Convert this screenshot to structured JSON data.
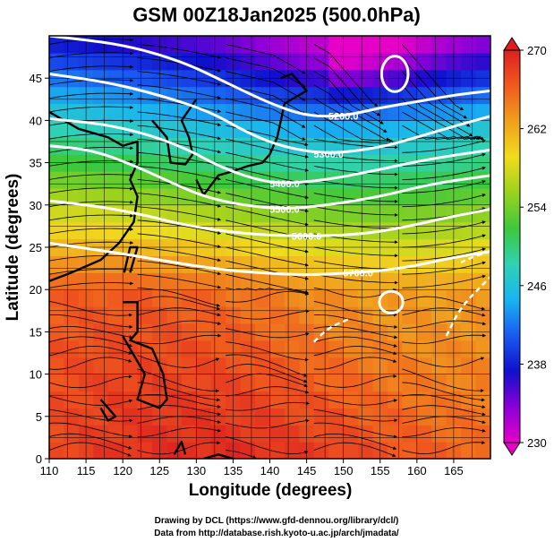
{
  "chart_data": {
    "type": "heatmap",
    "title": "GSM 00Z18Jan2025 (500.0hPa)",
    "xlabel": "Longitude (degrees)",
    "ylabel": "Latitude  (degrees)",
    "xlim": [
      110,
      170
    ],
    "ylim": [
      0,
      50
    ],
    "x_ticks": [
      110,
      115,
      120,
      125,
      130,
      135,
      140,
      145,
      150,
      155,
      160,
      165
    ],
    "y_ticks": [
      0,
      5,
      10,
      15,
      20,
      25,
      30,
      35,
      40,
      45
    ],
    "colorbar": {
      "min": 230,
      "max": 270,
      "ticks": [
        230,
        238,
        246,
        254,
        262,
        270
      ],
      "colors": [
        "#e600c8",
        "#8a00d8",
        "#1010cc",
        "#1a5af0",
        "#19b4f0",
        "#30d2b4",
        "#3cc83c",
        "#9ad21e",
        "#f0dc1e",
        "#f0a01e",
        "#f05a1e",
        "#dc2020"
      ]
    },
    "field_description": "temperature shading (K) with geopotential height contours and wind streamlines",
    "contours": [
      {
        "label": "5200.0",
        "points": [
          [
            110,
            50
          ],
          [
            120,
            49
          ],
          [
            128,
            47
          ],
          [
            134,
            44.5
          ],
          [
            140,
            42
          ],
          [
            145,
            40.5
          ],
          [
            150,
            40.5
          ],
          [
            155,
            41.5
          ],
          [
            160,
            42.2
          ],
          [
            165,
            43
          ],
          [
            170,
            43.5
          ]
        ]
      },
      {
        "label": "5300.0",
        "points": [
          [
            110,
            45.5
          ],
          [
            118,
            44.5
          ],
          [
            125,
            43
          ],
          [
            132,
            41
          ],
          [
            137,
            38.5
          ],
          [
            142,
            36.8
          ],
          [
            148,
            36
          ],
          [
            155,
            36.8
          ],
          [
            160,
            38
          ],
          [
            165,
            39.3
          ],
          [
            170,
            40.5
          ]
        ]
      },
      {
        "label": "5400.0",
        "points": [
          [
            110,
            40.2
          ],
          [
            118,
            39.5
          ],
          [
            124,
            38.2
          ],
          [
            129,
            36.5
          ],
          [
            133,
            34.6
          ],
          [
            138,
            33
          ],
          [
            142,
            32.5
          ],
          [
            148,
            33
          ],
          [
            155,
            34.2
          ],
          [
            162,
            35.5
          ],
          [
            170,
            36.5
          ]
        ]
      },
      {
        "label": "5500.0",
        "points": [
          [
            110,
            37
          ],
          [
            116,
            36.5
          ],
          [
            122,
            34.5
          ],
          [
            127,
            32.5
          ],
          [
            131,
            31
          ],
          [
            136,
            30
          ],
          [
            142,
            29.5
          ],
          [
            148,
            30
          ],
          [
            155,
            31
          ],
          [
            162,
            32.5
          ],
          [
            170,
            33.5
          ]
        ]
      },
      {
        "label": "5600.0",
        "points": [
          [
            110,
            30.5
          ],
          [
            117,
            29.8
          ],
          [
            123,
            28.8
          ],
          [
            128,
            27.7
          ],
          [
            133,
            27
          ],
          [
            138,
            26.5
          ],
          [
            145,
            26.3
          ],
          [
            152,
            26.5
          ],
          [
            158,
            27.3
          ],
          [
            164,
            28.5
          ],
          [
            170,
            29.5
          ]
        ]
      },
      {
        "label": "5700.0",
        "points": [
          [
            110,
            25.5
          ],
          [
            118,
            24.5
          ],
          [
            125,
            23.5
          ],
          [
            132,
            22.5
          ],
          [
            138,
            22
          ],
          [
            145,
            21.7
          ],
          [
            152,
            22
          ],
          [
            158,
            22.5
          ],
          [
            165,
            23.8
          ],
          [
            170,
            24.5
          ]
        ]
      }
    ],
    "closed_contours": [
      {
        "center": [
          157,
          45.5
        ],
        "rx": 1.8,
        "ry": 2.1
      },
      {
        "center": [
          156.5,
          18.5
        ],
        "rx": 1.6,
        "ry": 1.3
      }
    ],
    "dashed_contours": [
      [
        [
          146,
          13.8
        ],
        [
          148,
          15.5
        ],
        [
          151,
          16.6
        ]
      ],
      [
        [
          164,
          14.5
        ],
        [
          166,
          18
        ],
        [
          170,
          21.5
        ]
      ],
      [
        [
          170,
          24.5
        ],
        [
          168,
          24.0
        ],
        [
          166,
          23.2
        ]
      ]
    ]
  },
  "credits": [
    "Drawing by DCL (https://www.gfd-dennou.org/library/dcl/)",
    "Data from http://database.rish.kyoto-u.ac.jp/arch/jmadata/"
  ]
}
